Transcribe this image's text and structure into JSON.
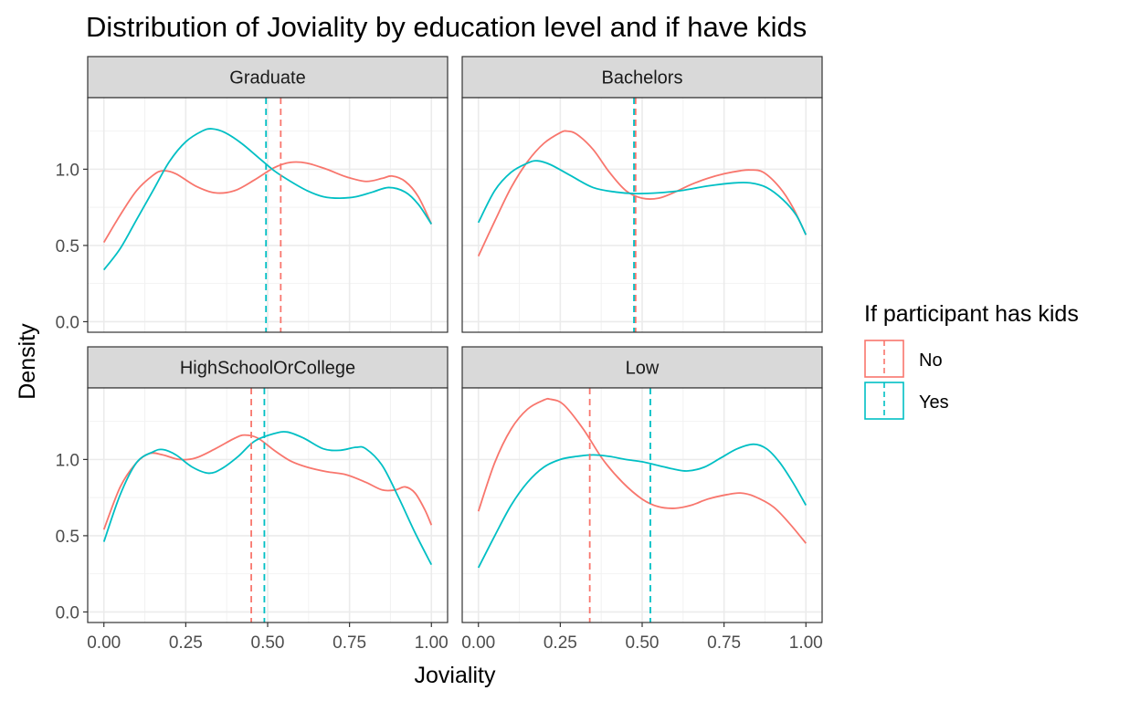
{
  "colors": {
    "No": "#F8766D",
    "Yes": "#00BFC4"
  },
  "chart_data": {
    "type": "line",
    "subtype": "density-faceted",
    "title": "Distribution of Joviality by education level and if have kids",
    "xlabel": "Joviality",
    "ylabel": "Density",
    "xlim": [
      0,
      1
    ],
    "ylim": [
      0,
      1.4
    ],
    "x_ticks": [
      0.0,
      0.25,
      0.5,
      0.75,
      1.0
    ],
    "x_tick_labels": [
      "0.00",
      "0.25",
      "0.50",
      "0.75",
      "1.00"
    ],
    "y_ticks": [
      0.0,
      0.5,
      1.0
    ],
    "y_tick_labels": [
      "0.0",
      "0.5",
      "1.0"
    ],
    "grid": true,
    "legend": {
      "title": "If participant has kids",
      "position": "right",
      "entries": [
        "No",
        "Yes"
      ]
    },
    "panels": [
      {
        "label": "Graduate",
        "series": [
          {
            "name": "No",
            "mean": 0.54,
            "points": [
              [
                0,
                0.52
              ],
              [
                0.05,
                0.7
              ],
              [
                0.1,
                0.86
              ],
              [
                0.15,
                0.96
              ],
              [
                0.18,
                0.99
              ],
              [
                0.22,
                0.97
              ],
              [
                0.28,
                0.89
              ],
              [
                0.34,
                0.845
              ],
              [
                0.4,
                0.86
              ],
              [
                0.46,
                0.93
              ],
              [
                0.52,
                1.01
              ],
              [
                0.57,
                1.045
              ],
              [
                0.62,
                1.04
              ],
              [
                0.68,
                1.0
              ],
              [
                0.74,
                0.95
              ],
              [
                0.8,
                0.92
              ],
              [
                0.85,
                0.94
              ],
              [
                0.88,
                0.955
              ],
              [
                0.92,
                0.92
              ],
              [
                0.96,
                0.82
              ],
              [
                1,
                0.64
              ]
            ]
          },
          {
            "name": "Yes",
            "mean": 0.495,
            "points": [
              [
                0,
                0.34
              ],
              [
                0.05,
                0.48
              ],
              [
                0.1,
                0.67
              ],
              [
                0.15,
                0.86
              ],
              [
                0.2,
                1.05
              ],
              [
                0.25,
                1.18
              ],
              [
                0.3,
                1.25
              ],
              [
                0.33,
                1.265
              ],
              [
                0.37,
                1.24
              ],
              [
                0.42,
                1.17
              ],
              [
                0.47,
                1.08
              ],
              [
                0.52,
                0.99
              ],
              [
                0.57,
                0.92
              ],
              [
                0.62,
                0.86
              ],
              [
                0.67,
                0.82
              ],
              [
                0.72,
                0.81
              ],
              [
                0.77,
                0.82
              ],
              [
                0.82,
                0.85
              ],
              [
                0.87,
                0.88
              ],
              [
                0.92,
                0.85
              ],
              [
                0.96,
                0.77
              ],
              [
                1,
                0.64
              ]
            ]
          }
        ]
      },
      {
        "label": "Bachelors",
        "series": [
          {
            "name": "No",
            "mean": 0.48,
            "points": [
              [
                0,
                0.43
              ],
              [
                0.05,
                0.66
              ],
              [
                0.1,
                0.88
              ],
              [
                0.15,
                1.05
              ],
              [
                0.2,
                1.17
              ],
              [
                0.25,
                1.24
              ],
              [
                0.27,
                1.25
              ],
              [
                0.3,
                1.23
              ],
              [
                0.35,
                1.13
              ],
              [
                0.4,
                0.98
              ],
              [
                0.45,
                0.86
              ],
              [
                0.5,
                0.81
              ],
              [
                0.55,
                0.81
              ],
              [
                0.6,
                0.85
              ],
              [
                0.65,
                0.9
              ],
              [
                0.7,
                0.94
              ],
              [
                0.75,
                0.97
              ],
              [
                0.8,
                0.99
              ],
              [
                0.83,
                0.995
              ],
              [
                0.87,
                0.98
              ],
              [
                0.92,
                0.88
              ],
              [
                0.96,
                0.75
              ],
              [
                1,
                0.57
              ]
            ]
          },
          {
            "name": "Yes",
            "mean": 0.475,
            "points": [
              [
                0,
                0.65
              ],
              [
                0.05,
                0.86
              ],
              [
                0.1,
                0.98
              ],
              [
                0.15,
                1.04
              ],
              [
                0.18,
                1.055
              ],
              [
                0.22,
                1.03
              ],
              [
                0.28,
                0.96
              ],
              [
                0.35,
                0.88
              ],
              [
                0.42,
                0.85
              ],
              [
                0.48,
                0.84
              ],
              [
                0.55,
                0.845
              ],
              [
                0.62,
                0.86
              ],
              [
                0.7,
                0.89
              ],
              [
                0.78,
                0.91
              ],
              [
                0.83,
                0.91
              ],
              [
                0.88,
                0.88
              ],
              [
                0.93,
                0.8
              ],
              [
                0.97,
                0.7
              ],
              [
                1,
                0.57
              ]
            ]
          }
        ]
      },
      {
        "label": "HighSchoolOrCollege",
        "series": [
          {
            "name": "No",
            "mean": 0.45,
            "points": [
              [
                0,
                0.54
              ],
              [
                0.05,
                0.82
              ],
              [
                0.1,
                0.98
              ],
              [
                0.14,
                1.04
              ],
              [
                0.18,
                1.03
              ],
              [
                0.23,
                1.0
              ],
              [
                0.28,
                1.01
              ],
              [
                0.34,
                1.07
              ],
              [
                0.4,
                1.14
              ],
              [
                0.43,
                1.16
              ],
              [
                0.47,
                1.14
              ],
              [
                0.52,
                1.06
              ],
              [
                0.57,
                0.99
              ],
              [
                0.62,
                0.95
              ],
              [
                0.68,
                0.92
              ],
              [
                0.74,
                0.9
              ],
              [
                0.8,
                0.85
              ],
              [
                0.85,
                0.8
              ],
              [
                0.89,
                0.8
              ],
              [
                0.92,
                0.82
              ],
              [
                0.95,
                0.78
              ],
              [
                0.98,
                0.67
              ],
              [
                1,
                0.57
              ]
            ]
          },
          {
            "name": "Yes",
            "mean": 0.49,
            "points": [
              [
                0,
                0.46
              ],
              [
                0.05,
                0.77
              ],
              [
                0.1,
                0.98
              ],
              [
                0.15,
                1.05
              ],
              [
                0.18,
                1.065
              ],
              [
                0.22,
                1.03
              ],
              [
                0.27,
                0.95
              ],
              [
                0.32,
                0.91
              ],
              [
                0.36,
                0.94
              ],
              [
                0.41,
                1.02
              ],
              [
                0.46,
                1.12
              ],
              [
                0.52,
                1.17
              ],
              [
                0.56,
                1.18
              ],
              [
                0.61,
                1.14
              ],
              [
                0.67,
                1.07
              ],
              [
                0.72,
                1.06
              ],
              [
                0.77,
                1.08
              ],
              [
                0.8,
                1.07
              ],
              [
                0.85,
                0.96
              ],
              [
                0.9,
                0.75
              ],
              [
                0.95,
                0.52
              ],
              [
                1,
                0.31
              ]
            ]
          }
        ]
      },
      {
        "label": "Low",
        "series": [
          {
            "name": "No",
            "mean": 0.34,
            "points": [
              [
                0,
                0.66
              ],
              [
                0.05,
                0.98
              ],
              [
                0.1,
                1.2
              ],
              [
                0.15,
                1.33
              ],
              [
                0.2,
                1.39
              ],
              [
                0.22,
                1.395
              ],
              [
                0.26,
                1.36
              ],
              [
                0.32,
                1.2
              ],
              [
                0.38,
                1.0
              ],
              [
                0.44,
                0.85
              ],
              [
                0.5,
                0.74
              ],
              [
                0.55,
                0.69
              ],
              [
                0.6,
                0.68
              ],
              [
                0.65,
                0.7
              ],
              [
                0.7,
                0.74
              ],
              [
                0.76,
                0.77
              ],
              [
                0.8,
                0.78
              ],
              [
                0.84,
                0.76
              ],
              [
                0.9,
                0.69
              ],
              [
                0.95,
                0.58
              ],
              [
                1,
                0.45
              ]
            ]
          },
          {
            "name": "Yes",
            "mean": 0.525,
            "points": [
              [
                0,
                0.29
              ],
              [
                0.05,
                0.5
              ],
              [
                0.1,
                0.7
              ],
              [
                0.15,
                0.85
              ],
              [
                0.2,
                0.95
              ],
              [
                0.25,
                1.0
              ],
              [
                0.3,
                1.02
              ],
              [
                0.35,
                1.03
              ],
              [
                0.4,
                1.02
              ],
              [
                0.45,
                1.0
              ],
              [
                0.5,
                0.985
              ],
              [
                0.55,
                0.96
              ],
              [
                0.6,
                0.935
              ],
              [
                0.64,
                0.925
              ],
              [
                0.69,
                0.95
              ],
              [
                0.74,
                1.01
              ],
              [
                0.79,
                1.07
              ],
              [
                0.84,
                1.1
              ],
              [
                0.88,
                1.07
              ],
              [
                0.92,
                0.98
              ],
              [
                0.96,
                0.85
              ],
              [
                1,
                0.7
              ]
            ]
          }
        ]
      }
    ]
  }
}
